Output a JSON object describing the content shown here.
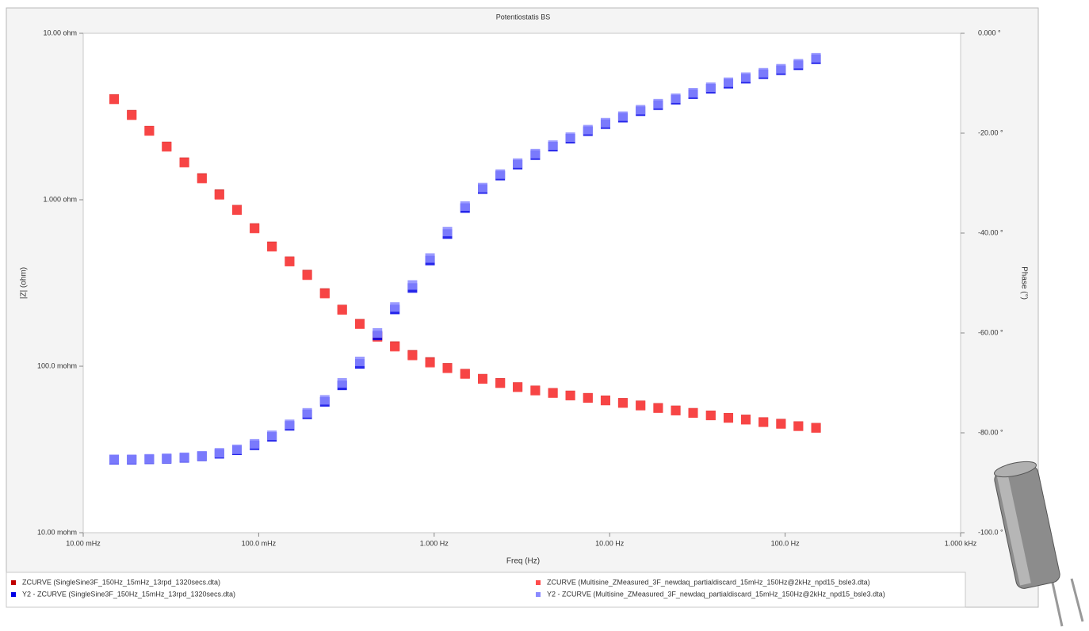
{
  "chart_data": {
    "type": "scatter",
    "title": "Potentiostatis BS",
    "x_label": "Freq (Hz)",
    "y_label": "|Z| (ohm)",
    "y2_label": "Phase (°)",
    "xscale": "log",
    "yscale": "log",
    "xlim": [
      0.01,
      1000
    ],
    "xticks": [
      {
        "value": 0.01,
        "label": "10.00 mHz"
      },
      {
        "value": 0.1,
        "label": "100.0 mHz"
      },
      {
        "value": 1,
        "label": "1.000 Hz"
      },
      {
        "value": 10,
        "label": "10.00 Hz"
      },
      {
        "value": 100,
        "label": "100.0 Hz"
      },
      {
        "value": 1000,
        "label": "1.000 kHz"
      }
    ],
    "ylim": [
      0.01,
      10
    ],
    "yticks": [
      {
        "value": 0.01,
        "label": "10.00 mohm"
      },
      {
        "value": 0.1,
        "label": "100.0 mohm"
      },
      {
        "value": 1,
        "label": "1.000 ohm"
      },
      {
        "value": 10,
        "label": "10.00 ohm"
      }
    ],
    "y2lim": [
      -100,
      0
    ],
    "y2ticks": [
      {
        "value": -100,
        "label": "-100.0 °"
      },
      {
        "value": -80,
        "label": "-80.00 °"
      },
      {
        "value": -60,
        "label": "-60.00 °"
      },
      {
        "value": -40,
        "label": "-40.00 °"
      },
      {
        "value": -20,
        "label": "-20.00 °"
      },
      {
        "value": 0,
        "label": "0.000 °"
      }
    ],
    "x": [
      0.015,
      0.0189,
      0.0238,
      0.0299,
      0.0377,
      0.0475,
      0.0597,
      0.0752,
      0.0947,
      0.119,
      0.15,
      0.189,
      0.238,
      0.299,
      0.377,
      0.475,
      0.597,
      0.752,
      0.947,
      1.19,
      1.5,
      1.89,
      2.38,
      2.99,
      3.77,
      4.75,
      5.97,
      7.52,
      9.47,
      11.9,
      15,
      18.9,
      23.8,
      29.9,
      37.7,
      47.5,
      59.7,
      75.2,
      94.7,
      119,
      150
    ],
    "series": [
      {
        "name": "ZCURVE (SingleSine3F_150Hz_15mHz_13rpd_1320secs.dta)",
        "color": "#c00000",
        "values": [
          4.03,
          3.24,
          2.6,
          2.09,
          1.68,
          1.35,
          1.08,
          0.871,
          0.676,
          0.525,
          0.427,
          0.355,
          0.275,
          0.219,
          0.18,
          0.151,
          0.132,
          0.117,
          0.106,
          0.0977,
          0.0902,
          0.0841,
          0.0794,
          0.075,
          0.0716,
          0.0692,
          0.0668,
          0.0646,
          0.0624,
          0.0603,
          0.0582,
          0.0562,
          0.0543,
          0.0525,
          0.0507,
          0.049,
          0.0479,
          0.0462,
          0.0452,
          0.0437,
          0.0427
        ]
      },
      {
        "name": "ZCURVE (Multisine_ZMeasured_3F_newdaq_partialdiscard_15mHz_150Hz@2kHz_npd15_bsle3.dta)",
        "color": "#ff4b4b",
        "values": [
          4.01,
          3.22,
          2.59,
          2.08,
          1.67,
          1.34,
          1.07,
          0.866,
          0.672,
          0.522,
          0.425,
          0.352,
          0.273,
          0.218,
          0.179,
          0.15,
          0.131,
          0.116,
          0.105,
          0.0972,
          0.0898,
          0.0838,
          0.0791,
          0.0748,
          0.0714,
          0.069,
          0.0666,
          0.0644,
          0.0622,
          0.0601,
          0.058,
          0.056,
          0.0541,
          0.0523,
          0.0506,
          0.0489,
          0.0477,
          0.0461,
          0.045,
          0.0436,
          0.0426
        ]
      },
      {
        "name": "Y2 - ZCURVE (SingleSine3F_150Hz_15mHz_13rpd_1320secs.dta)",
        "color": "#0000e6",
        "axis": "y2",
        "values": [
          -85.4,
          -85.4,
          -85.3,
          -85.2,
          -85.0,
          -84.7,
          -84.2,
          -83.5,
          -82.5,
          -80.8,
          -78.6,
          -76.3,
          -73.8,
          -70.5,
          -66.2,
          -60.5,
          -55.3,
          -51.0,
          -45.5,
          -40.2,
          -35.0,
          -31.2,
          -28.5,
          -26.3,
          -24.4,
          -22.7,
          -21.1,
          -19.6,
          -18.2,
          -16.9,
          -15.6,
          -14.4,
          -13.3,
          -12.2,
          -11.1,
          -10.1,
          -9.1,
          -8.2,
          -7.4,
          -6.4,
          -5.2
        ]
      },
      {
        "name": "Y2 - ZCURVE (Multisine_ZMeasured_3F_newdaq_partialdiscard_15mHz_150Hz@2kHz_npd15_bsle3.dta)",
        "color": "#8a8aff",
        "axis": "y2",
        "values": [
          -85.3,
          -85.3,
          -85.2,
          -85.1,
          -84.9,
          -84.6,
          -84.0,
          -83.3,
          -82.2,
          -80.5,
          -78.3,
          -76.0,
          -73.4,
          -70.0,
          -65.7,
          -60.0,
          -54.8,
          -50.4,
          -45.0,
          -39.7,
          -34.6,
          -30.9,
          -28.2,
          -26.0,
          -24.1,
          -22.4,
          -20.8,
          -19.3,
          -17.9,
          -16.6,
          -15.3,
          -14.1,
          -13.0,
          -11.9,
          -10.8,
          -9.8,
          -8.8,
          -7.9,
          -7.1,
          -6.1,
          -4.9
        ]
      }
    ]
  }
}
